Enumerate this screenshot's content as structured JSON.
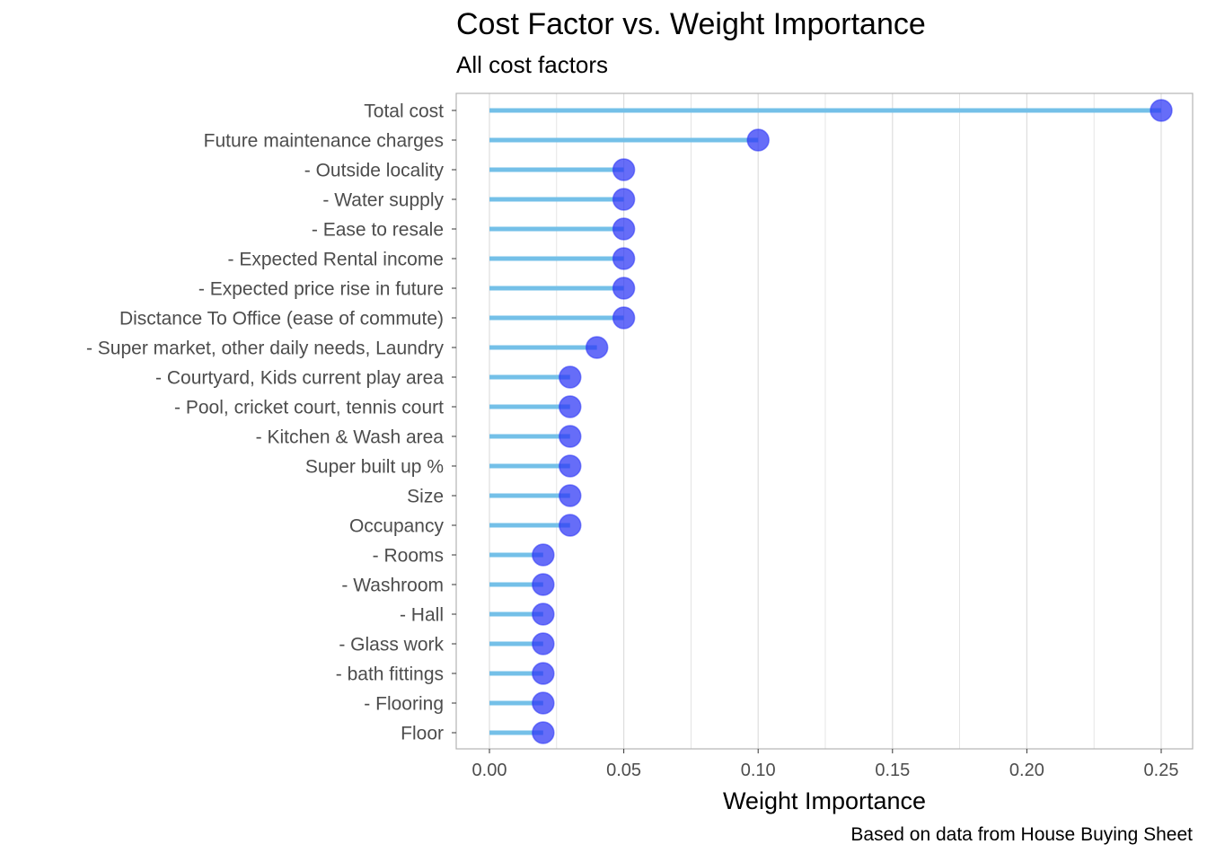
{
  "title": "Cost Factor vs. Weight Importance",
  "subtitle": "All cost factors",
  "caption": "Based on data from House Buying Sheet",
  "chart_data": {
    "type": "lollipop",
    "title": "Cost Factor vs. Weight Importance",
    "subtitle": "All cost factors",
    "xlabel": "Weight Importance",
    "ylabel": "",
    "xlim": [
      0,
      0.25
    ],
    "xticks": [
      "0.00",
      "0.05",
      "0.10",
      "0.15",
      "0.20",
      "0.25"
    ],
    "xtick_values": [
      0,
      0.05,
      0.1,
      0.15,
      0.2,
      0.25
    ],
    "grid": "vertical",
    "orientation": "horizontal",
    "colors": {
      "stem": "#74c0e8",
      "point": "#2b35f5",
      "grid": "#dedede",
      "panel_border": "#b3b3b3"
    },
    "categories": [
      "Total cost",
      "Future maintenance charges",
      "- Outside locality",
      "- Water supply",
      "- Ease to resale",
      "- Expected Rental income",
      "- Expected price rise in future",
      "Disctance To Office (ease of commute)",
      "- Super market, other daily needs, Laundry",
      "- Courtyard, Kids current play area",
      "- Pool, cricket court, tennis court",
      "- Kitchen & Wash area",
      "Super built up %",
      "Size",
      "Occupancy",
      "- Rooms",
      "- Washroom",
      "- Hall",
      "- Glass work",
      "- bath fittings",
      "- Flooring",
      "Floor"
    ],
    "values": [
      0.25,
      0.1,
      0.05,
      0.05,
      0.05,
      0.05,
      0.05,
      0.05,
      0.04,
      0.03,
      0.03,
      0.03,
      0.03,
      0.03,
      0.03,
      0.02,
      0.02,
      0.02,
      0.02,
      0.02,
      0.02,
      0.02
    ]
  }
}
